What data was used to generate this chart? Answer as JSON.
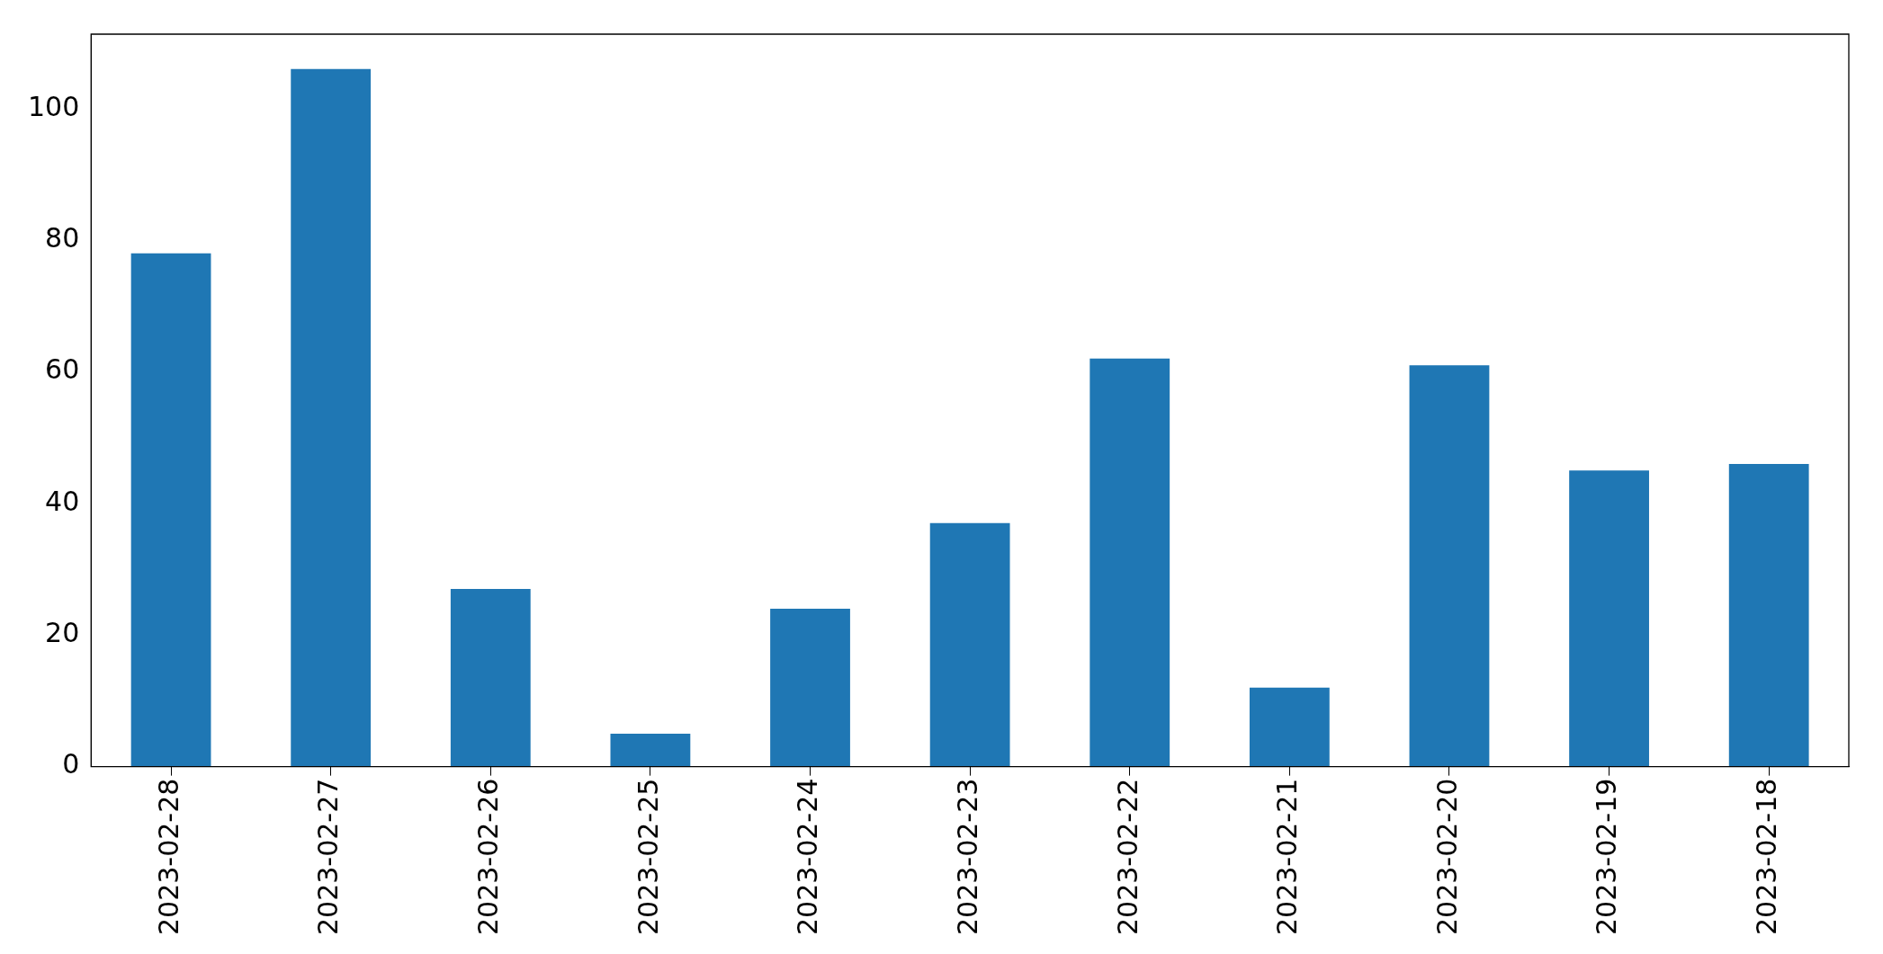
{
  "chart_data": {
    "type": "bar",
    "categories": [
      "2023-02-28",
      "2023-02-27",
      "2023-02-26",
      "2023-02-25",
      "2023-02-24",
      "2023-02-23",
      "2023-02-22",
      "2023-02-21",
      "2023-02-20",
      "2023-02-19",
      "2023-02-18"
    ],
    "values": [
      78,
      106,
      27,
      5,
      24,
      37,
      62,
      12,
      61,
      45,
      46
    ],
    "color": "#1f77b4",
    "ylim": [
      0,
      111.3
    ],
    "yticks": [
      0,
      20,
      40,
      60,
      80,
      100
    ],
    "grid": false,
    "legend": false
  }
}
